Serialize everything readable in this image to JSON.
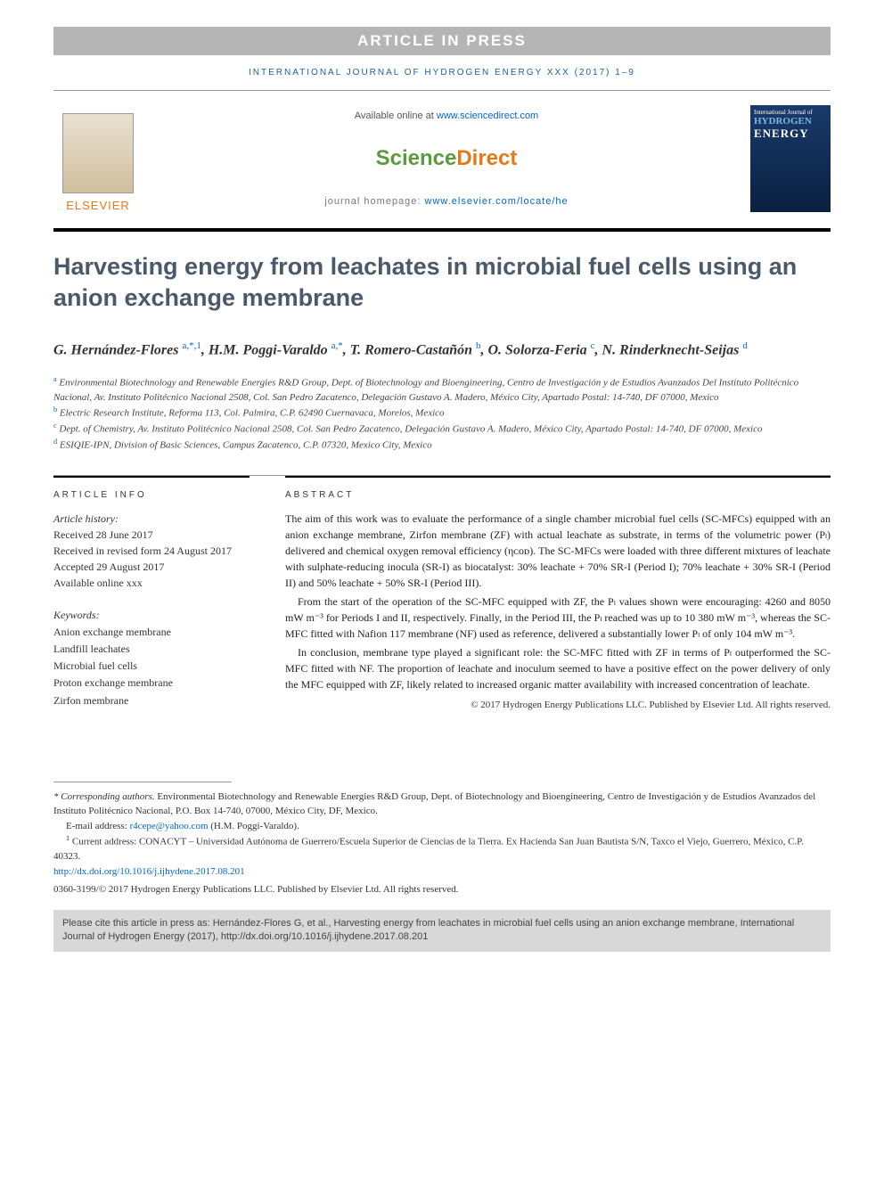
{
  "banner": "ARTICLE IN PRESS",
  "journal_ref": "INTERNATIONAL JOURNAL OF HYDROGEN ENERGY XXX (2017) 1–9",
  "header": {
    "available_prefix": "Available online at ",
    "available_url": "www.sciencedirect.com",
    "brand_sci": "Science",
    "brand_direct": "Direct",
    "homepage_prefix": "journal homepage: ",
    "homepage_url": "www.elsevier.com/locate/he",
    "elsevier": "ELSEVIER",
    "cover_line1": "International Journal of",
    "cover_line2": "HYDROGEN",
    "cover_line3": "ENERGY"
  },
  "title": "Harvesting energy from leachates in microbial fuel cells using an anion exchange membrane",
  "authors_html": "G. Hernández-Flores <sup>a,*,1</sup>, H.M. Poggi-Varaldo <sup>a,*</sup>, T. Romero-Castañón <sup>b</sup>, O. Solorza-Feria <sup>c</sup>, N. Rinderknecht-Seijas <sup>d</sup>",
  "affiliations": [
    {
      "sup": "a",
      "text": "Environmental Biotechnology and Renewable Energies R&D Group, Dept. of Biotechnology and Bioengineering, Centro de Investigación y de Estudios Avanzados Del Instituto Politécnico Nacional, Av. Instituto Politécnico Nacional 2508, Col. San Pedro Zacatenco, Delegación Gustavo A. Madero, México City, Apartado Postal: 14-740, DF 07000, Mexico"
    },
    {
      "sup": "b",
      "text": "Electric Research Institute, Reforma 113, Col. Palmira, C.P. 62490 Cuernavaca, Morelos, Mexico"
    },
    {
      "sup": "c",
      "text": "Dept. of Chemistry, Av. Instituto Politécnico Nacional 2508, Col. San Pedro Zacatenco, Delegación Gustavo A. Madero, México City, Apartado Postal: 14-740, DF 07000, Mexico"
    },
    {
      "sup": "d",
      "text": "ESIQIE-IPN, Division of Basic Sciences, Campus Zacatenco, C.P. 07320, Mexico City, Mexico"
    }
  ],
  "article_info": {
    "heading": "ARTICLE INFO",
    "history_label": "Article history:",
    "received": "Received 28 June 2017",
    "revised": "Received in revised form 24 August 2017",
    "accepted": "Accepted 29 August 2017",
    "online": "Available online xxx",
    "keywords_label": "Keywords:",
    "keywords": [
      "Anion exchange membrane",
      "Landfill leachates",
      "Microbial fuel cells",
      "Proton exchange membrane",
      "Zirfon membrane"
    ]
  },
  "abstract": {
    "heading": "ABSTRACT",
    "p1": "The aim of this work was to evaluate the performance of a single chamber microbial fuel cells (SC-MFCs) equipped with an anion exchange membrane, Zirfon membrane (ZF) with actual leachate as substrate, in terms of the volumetric power (Pₗ) delivered and chemical oxygen removal efficiency (ηᴄᴏᴅ). The SC-MFCs were loaded with three different mixtures of leachate with sulphate-reducing inocula (SR-I) as biocatalyst: 30% leachate + 70% SR-I (Period I); 70% leachate + 30% SR-I (Period II) and 50% leachate + 50% SR-I (Period III).",
    "p2": "From the start of the operation of the SC-MFC equipped with ZF, the Pₗ values shown were encouraging: 4260 and 8050 mW m⁻³ for Periods I and II, respectively. Finally, in the Period III, the Pₗ reached was up to 10 380 mW m⁻³, whereas the SC-MFC fitted with Nafion 117 membrane (NF) used as reference, delivered a substantially lower Pₗ of only 104 mW m⁻³.",
    "p3": "In conclusion, membrane type played a significant role: the SC-MFC fitted with ZF in terms of Pₗ outperformed the SC-MFC fitted with NF. The proportion of leachate and inoculum seemed to have a positive effect on the power delivery of only the MFC equipped with ZF, likely related to increased organic matter availability with increased concentration of leachate.",
    "copyright": "© 2017 Hydrogen Energy Publications LLC. Published by Elsevier Ltd. All rights reserved."
  },
  "footnotes": {
    "corr_label": "* Corresponding authors.",
    "corr_text": " Environmental Biotechnology and Renewable Energies R&D Group, Dept. of Biotechnology and Bioengineering, Centro de Investigación y de Estudios Avanzados del Instituto Politécnico Nacional, P.O. Box 14-740, 07000, México City, DF, Mexico.",
    "email_label": "E-mail address: ",
    "email": "r4cepe@yahoo.com",
    "email_person": " (H.M. Poggi-Varaldo).",
    "note1_label": "1",
    "note1_text": " Current address: CONACYT – Universidad Autónoma de Guerrero/Escuela Superior de Ciencias de la Tierra. Ex Hacienda San Juan Bautista S/N, Taxco el Viejo, Guerrero, México, C.P. 40323.",
    "doi": "http://dx.doi.org/10.1016/j.ijhydene.2017.08.201",
    "issn": "0360-3199/© 2017 Hydrogen Energy Publications LLC. Published by Elsevier Ltd. All rights reserved."
  },
  "cite_box": "Please cite this article in press as: Hernández-Flores G, et al., Harvesting energy from leachates in microbial fuel cells using an anion exchange membrane, International Journal of Hydrogen Energy (2017), http://dx.doi.org/10.1016/j.ijhydene.2017.08.201",
  "colors": {
    "banner_bg": "#b5b5b5",
    "link": "#0066cc",
    "elsevier_orange": "#e67817",
    "sci_green": "#5a9b3e",
    "title_color": "#4a5a6a",
    "citebox_bg": "#d8d8d8"
  }
}
